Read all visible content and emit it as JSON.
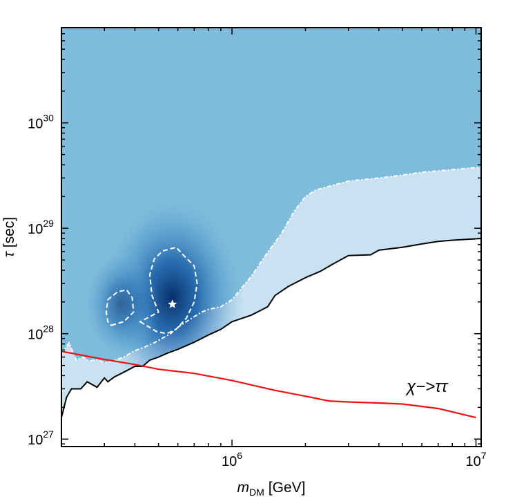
{
  "chart_data": {
    "type": "heatmap",
    "xlabel": {
      "base": "m",
      "subscript": "DM",
      "unit": "[GeV]"
    },
    "ylabel": {
      "symbol": "τ",
      "unit": "[sec]"
    },
    "xscale": "log",
    "yscale": "log",
    "xlim": [
      200000,
      10500000
    ],
    "ylim": [
      8.5e+26,
      8e+30
    ],
    "x_ticks": [
      {
        "value": 1000000,
        "base": "10",
        "exp": "6"
      },
      {
        "value": 10000000,
        "base": "10",
        "exp": "7"
      }
    ],
    "y_ticks": [
      {
        "value": 1e+27,
        "base": "10",
        "exp": "27"
      },
      {
        "value": 1e+28,
        "base": "10",
        "exp": "28"
      },
      {
        "value": 1e+29,
        "base": "10",
        "exp": "29"
      },
      {
        "value": 1e+30,
        "base": "10",
        "exp": "30"
      }
    ],
    "best_fit": {
      "x": 570000,
      "y": 1.9e+28,
      "marker": "star"
    },
    "colors": {
      "heatmap_high": "#08306b",
      "heatmap_mid": "#2171b5",
      "heatmap_plateau": "#7fbcdc",
      "heatmap_low": "#ffffff",
      "limit_line": "#000000",
      "channel_line": "#ee1111",
      "contours": "#ffffff"
    },
    "series": [
      {
        "style": "solid-black",
        "x": [
          200000,
          210000,
          220000,
          240000,
          255000,
          280000,
          300000,
          310000,
          330000,
          345000,
          380000,
          400000,
          430000,
          460000,
          500000,
          540000,
          600000,
          700000,
          800000,
          900000,
          1000000,
          1200000,
          1400000,
          1500000,
          1700000,
          2000000,
          2300000,
          2600000,
          3000000,
          3700000,
          4000000,
          5000000,
          6000000,
          7000000,
          8000000,
          10500000
        ],
        "y": [
          1.6e+27,
          2.5e+27,
          3e+27,
          3e+27,
          3.5e+27,
          3.1e+27,
          3.8e+27,
          3.5e+27,
          3.9e+27,
          4.1e+27,
          4.6e+27,
          4.9e+27,
          4.9e+27,
          5.6e+27,
          6e+27,
          6.5e+27,
          7.1e+27,
          8.3e+27,
          9.7e+27,
          1.1e+28,
          1.3e+28,
          1.5e+28,
          1.8e+28,
          2.3e+28,
          2.8e+28,
          3.4e+28,
          3.9e+28,
          4.6e+28,
          5.5e+28,
          5.6e+28,
          6.2e+28,
          6.6e+28,
          7.1e+28,
          7.5e+28,
          7.7e+28,
          8e+28
        ]
      },
      {
        "name": "χ−>ττ",
        "style": "solid-red",
        "x": [
          200000,
          300000,
          400000,
          500000,
          700000,
          1000000,
          1500000,
          2000000,
          2500000,
          3000000,
          4000000,
          5000000,
          7000000,
          10000000
        ],
        "y": [
          6.8e+27,
          5.7e+27,
          5.1e+27,
          4.6e+27,
          4.2e+27,
          3.6e+27,
          2.9e+27,
          2.55e+27,
          2.3e+27,
          2.25e+27,
          2.2e+27,
          2.15e+27,
          1.95e+27,
          1.6e+27
        ]
      },
      {
        "style": "dashed-white",
        "x": [
          200000,
          215000,
          230000,
          245000,
          260000,
          280000,
          300000,
          330000,
          360000,
          400000,
          440000,
          480000,
          520000,
          560000,
          600000,
          650000,
          700000,
          750000,
          800000,
          900000,
          1000000,
          1200000,
          1400000,
          1600000,
          1800000,
          2000000,
          2200000,
          2500000,
          3000000,
          4000000,
          5000000,
          6000000,
          8000000,
          10500000
        ],
        "y": [
          6.4e+27,
          8.2e+27,
          5.6e+27,
          6e+27,
          5.5e+27,
          5.7e+27,
          5.3e+27,
          5.6e+27,
          6e+27,
          6.9e+27,
          7.5e+27,
          8.2e+27,
          9.1e+27,
          1e+28,
          1.15e+28,
          1.3e+28,
          1.45e+28,
          1.6e+28,
          1.7e+28,
          1.8e+28,
          2.1e+28,
          3.5e+28,
          5.9e+28,
          9e+28,
          1.45e+29,
          2e+29,
          2.3e+29,
          2.5e+29,
          2.8e+29,
          3e+29,
          3.2e+29,
          3.4e+29,
          3.6e+29,
          3.8e+29
        ]
      }
    ],
    "contours": [
      {
        "style": "dashed-white",
        "x": [
          420000,
          490000,
          540000,
          590000,
          650000,
          700000,
          720000,
          700000,
          640000,
          590000,
          520000,
          480000,
          460000,
          470000,
          500000,
          420000
        ],
        "y": [
          1.3e+28,
          1.05e+28,
          1e+28,
          1.1e+28,
          1.4e+28,
          2e+28,
          3e+28,
          4.4e+28,
          5.4e+28,
          6.6e+28,
          6.1e+28,
          5.1e+28,
          3.6e+28,
          2.3e+28,
          1.6e+28,
          1.3e+28
        ]
      },
      {
        "style": "dashed-white",
        "x": [
          320000,
          360000,
          395000,
          390000,
          370000,
          340000,
          310000,
          305000,
          310000,
          320000
        ],
        "y": [
          1.2e+28,
          1.3e+28,
          1.6e+28,
          2.2e+28,
          2.6e+28,
          2.5e+28,
          2.1e+28,
          1.6e+28,
          1.3e+28,
          1.2e+28
        ]
      }
    ],
    "annotations": [
      {
        "text": "χ−>ττ",
        "x": 5200000,
        "y": 2.8e+27
      }
    ]
  }
}
